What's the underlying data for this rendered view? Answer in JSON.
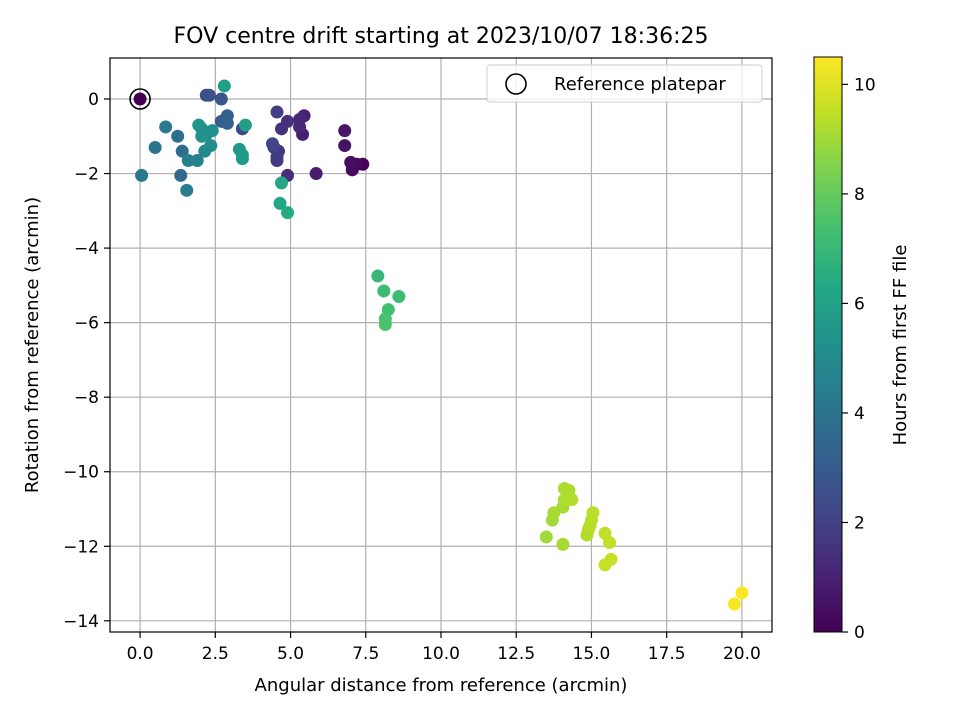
{
  "chart_data": {
    "type": "scatter",
    "title": "FOV centre drift starting at 2023/10/07 18:36:25",
    "xlabel": "Angular distance from reference (arcmin)",
    "ylabel": "Rotation from reference (arcmin)",
    "xlim": [
      -1.0,
      21.0
    ],
    "ylim": [
      -14.3,
      1.1
    ],
    "x_ticks": [
      0.0,
      2.5,
      5.0,
      7.5,
      10.0,
      12.5,
      15.0,
      17.5,
      20.0
    ],
    "x_tick_labels": [
      "0.0",
      "2.5",
      "5.0",
      "7.5",
      "10.0",
      "12.5",
      "15.0",
      "17.5",
      "20.0"
    ],
    "y_ticks": [
      0,
      -2,
      -4,
      -6,
      -8,
      -10,
      -12,
      -14
    ],
    "y_tick_labels": [
      "0",
      "−2",
      "−4",
      "−6",
      "−8",
      "−10",
      "−12",
      "−14"
    ],
    "grid": true,
    "colormap": "viridis",
    "colorbar": {
      "label": "Hours from first FF file",
      "range": [
        0,
        10.5
      ],
      "ticks": [
        0,
        2,
        4,
        6,
        8,
        10
      ],
      "tick_labels": [
        "0",
        "2",
        "4",
        "6",
        "8",
        "10"
      ]
    },
    "legend": {
      "position": "top-right",
      "entries": [
        "Reference platepar"
      ]
    },
    "reference_point": {
      "x": 0.0,
      "y": 0.0
    },
    "points": [
      {
        "x": 0.0,
        "y": 0.0,
        "c": 0.0
      },
      {
        "x": 7.4,
        "y": -1.75,
        "c": 0.1
      },
      {
        "x": 7.2,
        "y": -1.75,
        "c": 0.2
      },
      {
        "x": 7.05,
        "y": -1.9,
        "c": 0.3
      },
      {
        "x": 7.0,
        "y": -1.7,
        "c": 0.4
      },
      {
        "x": 6.8,
        "y": -1.25,
        "c": 0.5
      },
      {
        "x": 6.8,
        "y": -0.85,
        "c": 0.6
      },
      {
        "x": 5.85,
        "y": -2.0,
        "c": 0.8
      },
      {
        "x": 5.4,
        "y": -0.95,
        "c": 0.9
      },
      {
        "x": 5.45,
        "y": -0.45,
        "c": 1.0
      },
      {
        "x": 5.3,
        "y": -0.55,
        "c": 1.1
      },
      {
        "x": 5.3,
        "y": -0.75,
        "c": 1.2
      },
      {
        "x": 4.9,
        "y": -2.05,
        "c": 1.3
      },
      {
        "x": 4.9,
        "y": -0.6,
        "c": 1.4
      },
      {
        "x": 4.7,
        "y": -0.8,
        "c": 1.5
      },
      {
        "x": 4.6,
        "y": -1.4,
        "c": 1.6
      },
      {
        "x": 4.55,
        "y": -1.65,
        "c": 1.7
      },
      {
        "x": 4.55,
        "y": -1.55,
        "c": 1.8
      },
      {
        "x": 4.55,
        "y": -0.35,
        "c": 1.9
      },
      {
        "x": 4.45,
        "y": -1.3,
        "c": 2.0
      },
      {
        "x": 4.4,
        "y": -1.2,
        "c": 2.1
      },
      {
        "x": 3.4,
        "y": -0.8,
        "c": 2.2
      },
      {
        "x": 2.2,
        "y": 0.1,
        "c": 2.5
      },
      {
        "x": 2.3,
        "y": 0.1,
        "c": 2.6
      },
      {
        "x": 2.7,
        "y": 0.0,
        "c": 2.8
      },
      {
        "x": 2.7,
        "y": -0.6,
        "c": 3.0
      },
      {
        "x": 2.9,
        "y": -0.45,
        "c": 3.2
      },
      {
        "x": 2.9,
        "y": -0.65,
        "c": 3.3
      },
      {
        "x": 1.35,
        "y": -2.05,
        "c": 3.6
      },
      {
        "x": 1.4,
        "y": -1.4,
        "c": 3.7
      },
      {
        "x": 1.25,
        "y": -1.0,
        "c": 3.8
      },
      {
        "x": 0.5,
        "y": -1.3,
        "c": 4.0
      },
      {
        "x": 0.05,
        "y": -2.05,
        "c": 4.2
      },
      {
        "x": 0.85,
        "y": -0.75,
        "c": 4.3
      },
      {
        "x": 1.55,
        "y": -2.45,
        "c": 4.4
      },
      {
        "x": 1.6,
        "y": -1.65,
        "c": 4.5
      },
      {
        "x": 1.9,
        "y": -1.65,
        "c": 4.6
      },
      {
        "x": 2.05,
        "y": -0.8,
        "c": 4.8
      },
      {
        "x": 2.15,
        "y": -1.4,
        "c": 4.9
      },
      {
        "x": 2.2,
        "y": -0.95,
        "c": 5.0
      },
      {
        "x": 2.35,
        "y": -1.25,
        "c": 5.1
      },
      {
        "x": 2.4,
        "y": -0.85,
        "c": 5.2
      },
      {
        "x": 2.05,
        "y": -1.0,
        "c": 5.3
      },
      {
        "x": 1.95,
        "y": -0.7,
        "c": 5.4
      },
      {
        "x": 3.3,
        "y": -1.35,
        "c": 5.5
      },
      {
        "x": 3.4,
        "y": -1.6,
        "c": 5.6
      },
      {
        "x": 3.4,
        "y": -1.5,
        "c": 5.7
      },
      {
        "x": 3.5,
        "y": -0.7,
        "c": 5.8
      },
      {
        "x": 2.8,
        "y": 0.35,
        "c": 5.9
      },
      {
        "x": 4.7,
        "y": -2.25,
        "c": 6.2
      },
      {
        "x": 4.65,
        "y": -2.8,
        "c": 6.3
      },
      {
        "x": 4.9,
        "y": -3.05,
        "c": 6.4
      },
      {
        "x": 7.9,
        "y": -4.75,
        "c": 7.0
      },
      {
        "x": 8.1,
        "y": -5.15,
        "c": 7.1
      },
      {
        "x": 8.6,
        "y": -5.3,
        "c": 7.2
      },
      {
        "x": 8.25,
        "y": -5.65,
        "c": 7.3
      },
      {
        "x": 8.15,
        "y": -5.9,
        "c": 7.4
      },
      {
        "x": 8.15,
        "y": -6.05,
        "c": 7.5
      },
      {
        "x": 13.5,
        "y": -11.75,
        "c": 9.0
      },
      {
        "x": 13.7,
        "y": -11.3,
        "c": 9.0
      },
      {
        "x": 13.75,
        "y": -11.1,
        "c": 9.1
      },
      {
        "x": 14.05,
        "y": -11.95,
        "c": 9.1
      },
      {
        "x": 14.05,
        "y": -10.95,
        "c": 9.1
      },
      {
        "x": 14.1,
        "y": -10.75,
        "c": 9.2
      },
      {
        "x": 14.1,
        "y": -10.45,
        "c": 9.2
      },
      {
        "x": 14.25,
        "y": -10.5,
        "c": 9.2
      },
      {
        "x": 14.35,
        "y": -10.75,
        "c": 9.3
      },
      {
        "x": 14.85,
        "y": -11.7,
        "c": 9.3
      },
      {
        "x": 14.9,
        "y": -11.55,
        "c": 9.3
      },
      {
        "x": 14.95,
        "y": -11.45,
        "c": 9.4
      },
      {
        "x": 15.0,
        "y": -11.3,
        "c": 9.4
      },
      {
        "x": 15.05,
        "y": -11.1,
        "c": 9.4
      },
      {
        "x": 15.45,
        "y": -11.65,
        "c": 9.5
      },
      {
        "x": 15.6,
        "y": -11.9,
        "c": 9.5
      },
      {
        "x": 15.65,
        "y": -12.35,
        "c": 9.6
      },
      {
        "x": 15.45,
        "y": -12.5,
        "c": 9.6
      },
      {
        "x": 19.75,
        "y": -13.55,
        "c": 10.4
      },
      {
        "x": 20.0,
        "y": -13.25,
        "c": 10.5
      }
    ]
  }
}
